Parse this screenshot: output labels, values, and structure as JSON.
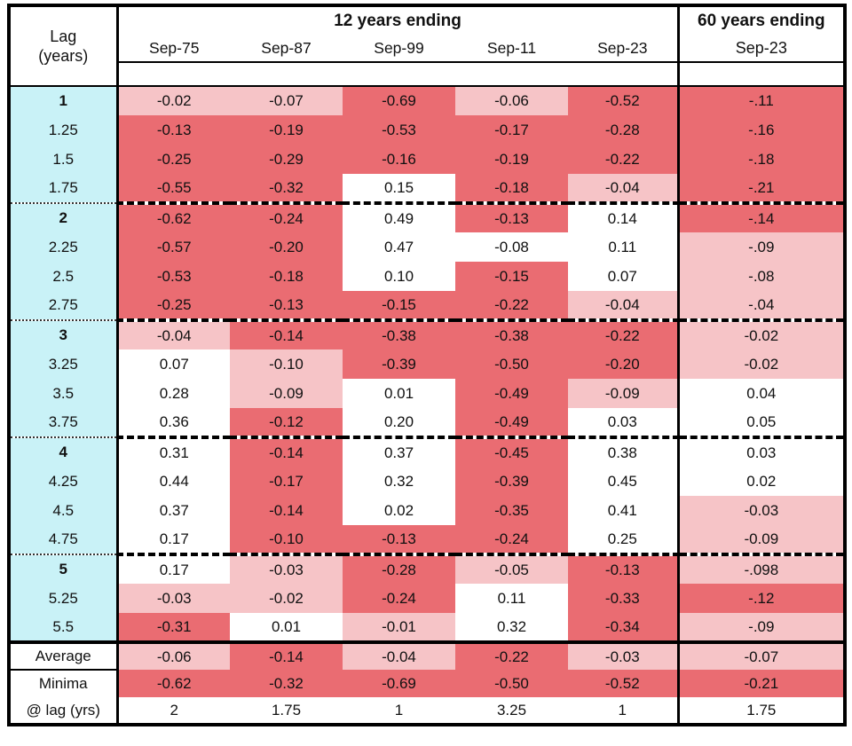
{
  "table": {
    "corner": {
      "line1": "Lag",
      "line2": "(years)"
    },
    "group_12y": "12 years ending",
    "group_60y": "60 years ending",
    "columns_12y": [
      "Sep-75",
      "Sep-87",
      "Sep-99",
      "Sep-11",
      "Sep-23"
    ],
    "column_60y": "Sep-23"
  },
  "colors": {
    "strong_negative": "#ea6c72",
    "mild_negative": "#f6c4c7",
    "positive_white": "#ffffff",
    "lag_column": "#c9f2f7",
    "border": "#000000"
  },
  "chart_data": {
    "type": "table",
    "title": "Correlation by lag (years): 12-year windows ending Sep-75..Sep-23 and 60-year window ending Sep-23",
    "shade_legend": {
      "S": "strong red (more negative)",
      "L": "light pink (mildly negative)",
      "W": "white (positive / near zero)"
    },
    "columns": [
      "Sep-75",
      "Sep-87",
      "Sep-99",
      "Sep-11",
      "Sep-23",
      "Sep-23 (60y)"
    ],
    "rows": [
      {
        "lag": "1",
        "bold": true,
        "group_start": false,
        "values": [
          "-0.02",
          "-0.07",
          "-0.69",
          "-0.06",
          "-0.52",
          "-.11"
        ],
        "shades": [
          "L",
          "L",
          "S",
          "L",
          "S",
          "S"
        ]
      },
      {
        "lag": "1.25",
        "bold": false,
        "group_start": false,
        "values": [
          "-0.13",
          "-0.19",
          "-0.53",
          "-0.17",
          "-0.28",
          "-.16"
        ],
        "shades": [
          "S",
          "S",
          "S",
          "S",
          "S",
          "S"
        ]
      },
      {
        "lag": "1.5",
        "bold": false,
        "group_start": false,
        "values": [
          "-0.25",
          "-0.29",
          "-0.16",
          "-0.19",
          "-0.22",
          "-.18"
        ],
        "shades": [
          "S",
          "S",
          "S",
          "S",
          "S",
          "S"
        ]
      },
      {
        "lag": "1.75",
        "bold": false,
        "group_start": false,
        "values": [
          "-0.55",
          "-0.32",
          "0.15",
          "-0.18",
          "-0.04",
          "-.21"
        ],
        "shades": [
          "S",
          "S",
          "W",
          "S",
          "L",
          "S"
        ]
      },
      {
        "lag": "2",
        "bold": true,
        "group_start": true,
        "values": [
          "-0.62",
          "-0.24",
          "0.49",
          "-0.13",
          "0.14",
          "-.14"
        ],
        "shades": [
          "S",
          "S",
          "W",
          "S",
          "W",
          "S"
        ]
      },
      {
        "lag": "2.25",
        "bold": false,
        "group_start": false,
        "values": [
          "-0.57",
          "-0.20",
          "0.47",
          "-0.08",
          "0.11",
          "-.09"
        ],
        "shades": [
          "S",
          "S",
          "W",
          "W",
          "W",
          "L"
        ]
      },
      {
        "lag": "2.5",
        "bold": false,
        "group_start": false,
        "values": [
          "-0.53",
          "-0.18",
          "0.10",
          "-0.15",
          "0.07",
          "-.08"
        ],
        "shades": [
          "S",
          "S",
          "W",
          "S",
          "W",
          "L"
        ]
      },
      {
        "lag": "2.75",
        "bold": false,
        "group_start": false,
        "values": [
          "-0.25",
          "-0.13",
          "-0.15",
          "-0.22",
          "-0.04",
          "-.04"
        ],
        "shades": [
          "S",
          "S",
          "S",
          "S",
          "L",
          "L"
        ]
      },
      {
        "lag": "3",
        "bold": true,
        "group_start": true,
        "values": [
          "-0.04",
          "-0.14",
          "-0.38",
          "-0.38",
          "-0.22",
          "-0.02"
        ],
        "shades": [
          "L",
          "S",
          "S",
          "S",
          "S",
          "L"
        ]
      },
      {
        "lag": "3.25",
        "bold": false,
        "group_start": false,
        "values": [
          "0.07",
          "-0.10",
          "-0.39",
          "-0.50",
          "-0.20",
          "-0.02"
        ],
        "shades": [
          "W",
          "L",
          "S",
          "S",
          "S",
          "L"
        ]
      },
      {
        "lag": "3.5",
        "bold": false,
        "group_start": false,
        "values": [
          "0.28",
          "-0.09",
          "0.01",
          "-0.49",
          "-0.09",
          "0.04"
        ],
        "shades": [
          "W",
          "L",
          "W",
          "S",
          "L",
          "W"
        ]
      },
      {
        "lag": "3.75",
        "bold": false,
        "group_start": false,
        "values": [
          "0.36",
          "-0.12",
          "0.20",
          "-0.49",
          "0.03",
          "0.05"
        ],
        "shades": [
          "W",
          "S",
          "W",
          "S",
          "W",
          "W"
        ]
      },
      {
        "lag": "4",
        "bold": true,
        "group_start": true,
        "values": [
          "0.31",
          "-0.14",
          "0.37",
          "-0.45",
          "0.38",
          "0.03"
        ],
        "shades": [
          "W",
          "S",
          "W",
          "S",
          "W",
          "W"
        ]
      },
      {
        "lag": "4.25",
        "bold": false,
        "group_start": false,
        "values": [
          "0.44",
          "-0.17",
          "0.32",
          "-0.39",
          "0.45",
          "0.02"
        ],
        "shades": [
          "W",
          "S",
          "W",
          "S",
          "W",
          "W"
        ]
      },
      {
        "lag": "4.5",
        "bold": false,
        "group_start": false,
        "values": [
          "0.37",
          "-0.14",
          "0.02",
          "-0.35",
          "0.41",
          "-0.03"
        ],
        "shades": [
          "W",
          "S",
          "W",
          "S",
          "W",
          "L"
        ]
      },
      {
        "lag": "4.75",
        "bold": false,
        "group_start": false,
        "values": [
          "0.17",
          "-0.10",
          "-0.13",
          "-0.24",
          "0.25",
          "-0.09"
        ],
        "shades": [
          "W",
          "S",
          "S",
          "S",
          "W",
          "L"
        ]
      },
      {
        "lag": "5",
        "bold": true,
        "group_start": true,
        "values": [
          "0.17",
          "-0.03",
          "-0.28",
          "-0.05",
          "-0.13",
          "-.098"
        ],
        "shades": [
          "W",
          "L",
          "S",
          "L",
          "S",
          "L"
        ]
      },
      {
        "lag": "5.25",
        "bold": false,
        "group_start": false,
        "values": [
          "-0.03",
          "-0.02",
          "-0.24",
          "0.11",
          "-0.33",
          "-.12"
        ],
        "shades": [
          "L",
          "L",
          "S",
          "W",
          "S",
          "S"
        ]
      },
      {
        "lag": "5.5",
        "bold": false,
        "group_start": false,
        "values": [
          "-0.31",
          "0.01",
          "-0.01",
          "0.32",
          "-0.34",
          "-.09"
        ],
        "shades": [
          "S",
          "W",
          "L",
          "W",
          "S",
          "L"
        ]
      }
    ],
    "summary_rows": [
      {
        "label": "Average",
        "values": [
          "-0.06",
          "-0.14",
          "-0.04",
          "-0.22",
          "-0.03",
          "-0.07"
        ],
        "shades": [
          "L",
          "S",
          "L",
          "S",
          "L",
          "L"
        ]
      },
      {
        "label": "Minima",
        "values": [
          "-0.62",
          "-0.32",
          "-0.69",
          "-0.50",
          "-0.52",
          "-0.21"
        ],
        "shades": [
          "S",
          "S",
          "S",
          "S",
          "S",
          "S"
        ]
      },
      {
        "label": "@ lag (yrs)",
        "values": [
          "2",
          "1.75",
          "1",
          "3.25",
          "1",
          "1.75"
        ],
        "shades": [
          "W",
          "W",
          "W",
          "W",
          "W",
          "W"
        ]
      }
    ]
  }
}
